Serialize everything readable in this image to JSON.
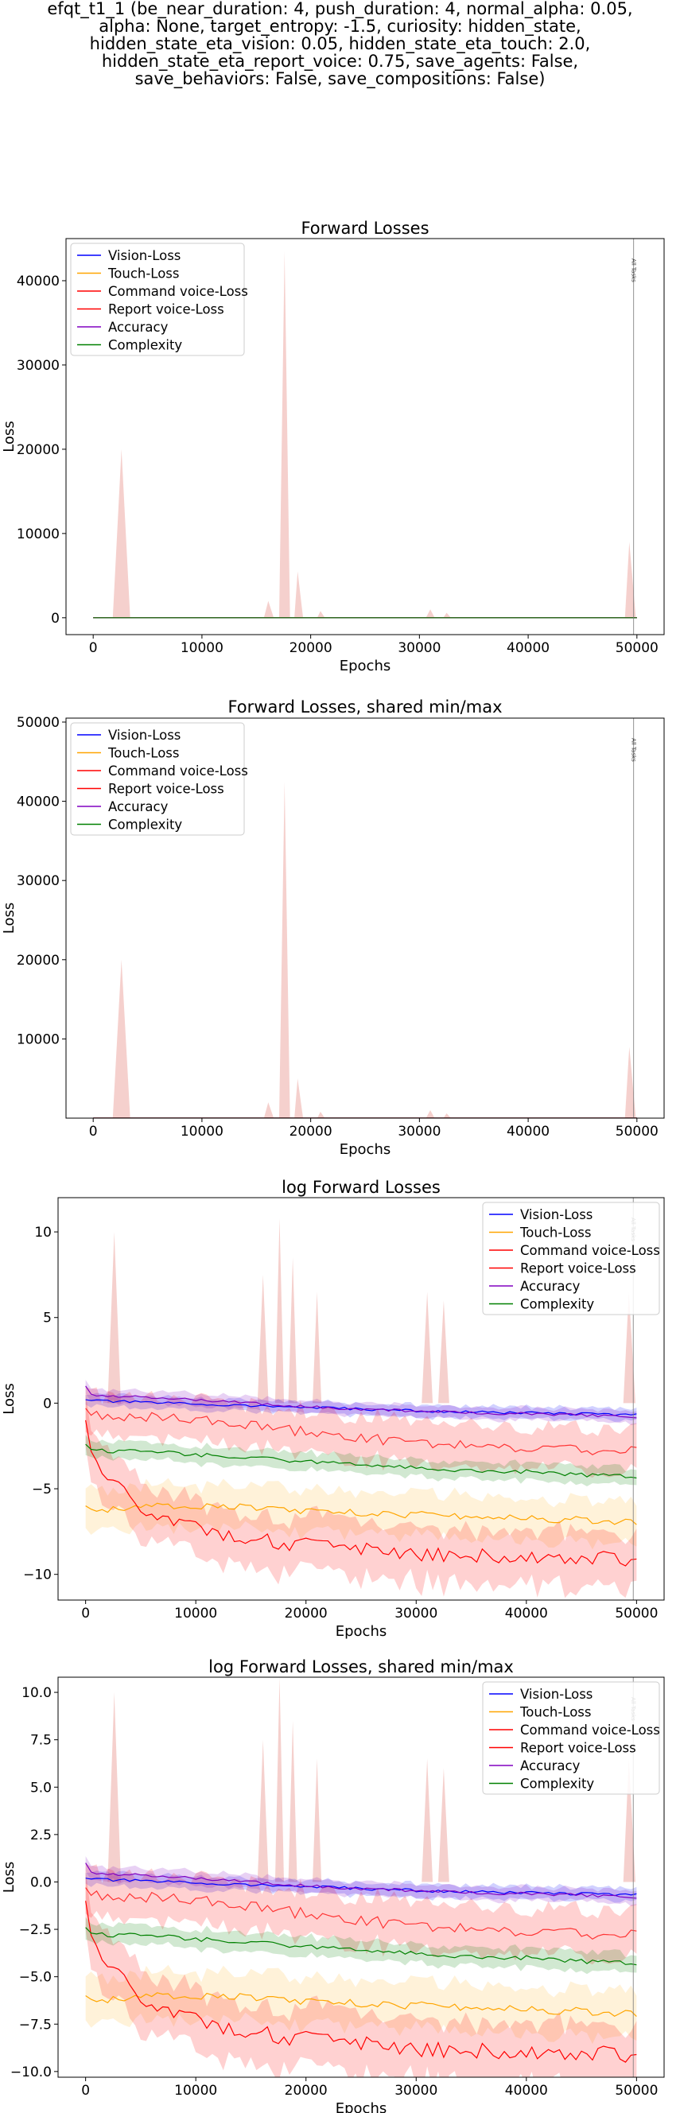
{
  "figure_title": "efqt_t1_1 (be_near_duration: 4, push_duration: 4, normal_alpha: 0.05,\nalpha: None, target_entropy: -1.5, curiosity: hidden_state,\nhidden_state_eta_vision: 0.05, hidden_state_eta_touch: 2.0,\nhidden_state_eta_report_voice: 0.75, save_agents: False,\nsave_behaviors: False, save_compositions: False)",
  "colors": {
    "Vision-Loss": "#0000ff",
    "Touch-Loss": "#ffa500",
    "Command voice-Loss": "#ff0000",
    "Report voice-Loss": "#ff0000",
    "Accuracy": "#8000c0",
    "Complexity": "#008000",
    "band": "#f2c4c0"
  },
  "chart_data": [
    {
      "type": "line",
      "title": "Forward Losses",
      "xlabel": "Epochs",
      "ylabel": "Loss",
      "xlim": [
        -2500,
        52500
      ],
      "ylim": [
        -2000,
        45000
      ],
      "xticks": [
        0,
        10000,
        20000,
        30000,
        40000,
        50000
      ],
      "xtick_labels": [
        "0",
        "10000",
        "20000",
        "30000",
        "40000",
        "50000"
      ],
      "yticks": [
        0,
        10000,
        20000,
        30000,
        40000
      ],
      "ytick_labels": [
        "0",
        "10000",
        "20000",
        "30000",
        "40000"
      ],
      "grid": false,
      "legend": "upper left",
      "vline": {
        "x": 49700,
        "label": "All Tasks"
      },
      "series_names": [
        "Vision-Loss",
        "Touch-Loss",
        "Command voice-Loss",
        "Report voice-Loss",
        "Accuracy",
        "Complexity"
      ],
      "spike_band": [
        [
          0,
          0
        ],
        [
          1800,
          0
        ],
        [
          2600,
          20000
        ],
        [
          3400,
          0
        ],
        [
          15700,
          0
        ],
        [
          16100,
          2000
        ],
        [
          16600,
          0
        ],
        [
          17100,
          0
        ],
        [
          17600,
          43500
        ],
        [
          18100,
          0
        ],
        [
          18500,
          0
        ],
        [
          18800,
          5500
        ],
        [
          19300,
          0
        ],
        [
          20600,
          0
        ],
        [
          20900,
          800
        ],
        [
          21300,
          0
        ],
        [
          30600,
          0
        ],
        [
          31000,
          1000
        ],
        [
          31400,
          0
        ],
        [
          32200,
          0
        ],
        [
          32500,
          600
        ],
        [
          32900,
          0
        ],
        [
          48900,
          0
        ],
        [
          49300,
          9000
        ],
        [
          49900,
          0
        ]
      ],
      "flat_series": {
        "Vision-Loss": 0,
        "Touch-Loss": 0,
        "Command voice-Loss": 0,
        "Report voice-Loss": 0,
        "Accuracy": 0,
        "Complexity": 0
      }
    },
    {
      "type": "line",
      "title": "Forward Losses, shared min/max",
      "xlabel": "Epochs",
      "ylabel": "Loss",
      "xlim": [
        -2500,
        52500
      ],
      "ylim": [
        0,
        50500
      ],
      "xticks": [
        0,
        10000,
        20000,
        30000,
        40000,
        50000
      ],
      "xtick_labels": [
        "0",
        "10000",
        "20000",
        "30000",
        "40000",
        "50000"
      ],
      "yticks": [
        10000,
        20000,
        30000,
        40000,
        50000
      ],
      "ytick_labels": [
        "10000",
        "20000",
        "30000",
        "40000",
        "50000"
      ],
      "grid": false,
      "legend": "upper left",
      "vline": {
        "x": 49700,
        "label": "All Tasks"
      },
      "series_names": [
        "Vision-Loss",
        "Touch-Loss",
        "Command voice-Loss",
        "Report voice-Loss",
        "Accuracy",
        "Complexity"
      ],
      "spike_band": [
        [
          0,
          0
        ],
        [
          1800,
          0
        ],
        [
          2600,
          20000
        ],
        [
          3400,
          0
        ],
        [
          15700,
          0
        ],
        [
          16100,
          2000
        ],
        [
          16600,
          0
        ],
        [
          17100,
          0
        ],
        [
          17600,
          42500
        ],
        [
          18100,
          0
        ],
        [
          18500,
          0
        ],
        [
          18800,
          5000
        ],
        [
          19300,
          0
        ],
        [
          20600,
          0
        ],
        [
          20900,
          800
        ],
        [
          21300,
          0
        ],
        [
          30600,
          0
        ],
        [
          31000,
          1000
        ],
        [
          31400,
          0
        ],
        [
          32200,
          0
        ],
        [
          32500,
          600
        ],
        [
          32900,
          0
        ],
        [
          48900,
          0
        ],
        [
          49300,
          9000
        ],
        [
          49900,
          0
        ]
      ],
      "flat_series": {
        "Vision-Loss": 0,
        "Touch-Loss": 0,
        "Command voice-Loss": 0,
        "Report voice-Loss": 0,
        "Accuracy": 0,
        "Complexity": 0
      }
    },
    {
      "type": "line",
      "title": "log Forward Losses",
      "xlabel": "Epochs",
      "ylabel": "Loss",
      "xlim": [
        -2500,
        52500
      ],
      "ylim": [
        -11.5,
        12
      ],
      "xticks": [
        0,
        10000,
        20000,
        30000,
        40000,
        50000
      ],
      "xtick_labels": [
        "0",
        "10000",
        "20000",
        "30000",
        "40000",
        "50000"
      ],
      "yticks": [
        -10,
        -5,
        0,
        5,
        10
      ],
      "ytick_labels": [
        "−10",
        "−5",
        "0",
        "5",
        "10"
      ],
      "grid": false,
      "legend": "upper right",
      "vline": {
        "x": 49700,
        "label": "All Tasks"
      },
      "series_names": [
        "Vision-Loss",
        "Touch-Loss",
        "Command voice-Loss",
        "Report voice-Loss",
        "Accuracy",
        "Complexity"
      ],
      "spike_band": [
        [
          2000,
          0
        ],
        [
          2600,
          10
        ],
        [
          3200,
          0
        ],
        [
          15600,
          0
        ],
        [
          16100,
          7.5
        ],
        [
          16600,
          0
        ],
        [
          17200,
          0
        ],
        [
          17600,
          10.8
        ],
        [
          18000,
          0
        ],
        [
          18400,
          0
        ],
        [
          18800,
          8.5
        ],
        [
          19200,
          0
        ],
        [
          20600,
          0
        ],
        [
          21000,
          6.5
        ],
        [
          21400,
          0
        ],
        [
          30500,
          0
        ],
        [
          31000,
          6.5
        ],
        [
          31500,
          0
        ],
        [
          32000,
          0
        ],
        [
          32500,
          6
        ],
        [
          33000,
          0
        ],
        [
          48800,
          0
        ],
        [
          49300,
          6.5
        ],
        [
          49900,
          0
        ]
      ],
      "x": [
        0,
        500,
        2500,
        5000,
        7500,
        10000,
        12500,
        15000,
        17500,
        20000,
        22500,
        25000,
        27500,
        30000,
        32500,
        35000,
        37500,
        40000,
        42500,
        45000,
        47500,
        50000
      ],
      "series": [
        {
          "name": "Vision-Loss",
          "values": [
            0.2,
            0.15,
            0.1,
            0.05,
            0.0,
            -0.05,
            -0.1,
            -0.15,
            -0.2,
            -0.25,
            -0.3,
            -0.35,
            -0.4,
            -0.45,
            -0.5,
            -0.52,
            -0.55,
            -0.58,
            -0.6,
            -0.62,
            -0.65,
            -0.7
          ]
        },
        {
          "name": "Touch-Loss",
          "values": [
            -6.0,
            -6.2,
            -6.2,
            -6.1,
            -6.0,
            -6.0,
            -6.0,
            -6.1,
            -6.2,
            -6.3,
            -6.4,
            -6.4,
            -6.5,
            -6.5,
            -6.6,
            -6.6,
            -6.7,
            -6.7,
            -6.8,
            -6.8,
            -6.9,
            -6.9
          ]
        },
        {
          "name": "Command voice-Loss",
          "values": [
            -0.3,
            -0.6,
            -0.8,
            -0.8,
            -0.9,
            -1.0,
            -1.1,
            -1.3,
            -1.5,
            -1.7,
            -1.9,
            -2.0,
            -2.2,
            -2.3,
            -2.4,
            -2.5,
            -2.6,
            -2.6,
            -2.7,
            -2.7,
            -2.8,
            -2.7
          ]
        },
        {
          "name": "Report voice-Loss",
          "values": [
            -1.0,
            -3.0,
            -4.8,
            -6.0,
            -6.8,
            -7.3,
            -7.6,
            -7.8,
            -8.1,
            -8.3,
            -8.5,
            -8.6,
            -8.7,
            -8.8,
            -8.8,
            -8.9,
            -8.9,
            -9.0,
            -9.0,
            -9.0,
            -9.1,
            -9.1
          ]
        },
        {
          "name": "Accuracy",
          "values": [
            1.0,
            0.5,
            0.4,
            0.35,
            0.3,
            0.2,
            0.1,
            0.0,
            -0.1,
            -0.2,
            -0.3,
            -0.35,
            -0.4,
            -0.45,
            -0.5,
            -0.55,
            -0.6,
            -0.6,
            -0.65,
            -0.7,
            -0.75,
            -0.8
          ]
        },
        {
          "name": "Complexity",
          "values": [
            -2.4,
            -2.7,
            -2.8,
            -2.8,
            -2.9,
            -3.0,
            -3.1,
            -3.2,
            -3.3,
            -3.4,
            -3.5,
            -3.6,
            -3.7,
            -3.8,
            -3.9,
            -3.9,
            -4.0,
            -4.0,
            -4.1,
            -4.2,
            -4.2,
            -4.3
          ]
        }
      ]
    },
    {
      "type": "line",
      "title": "log Forward Losses, shared min/max",
      "xlabel": "Epochs",
      "ylabel": "Loss",
      "xlim": [
        -2500,
        52500
      ],
      "ylim": [
        -10.3,
        10.8
      ],
      "xticks": [
        0,
        10000,
        20000,
        30000,
        40000,
        50000
      ],
      "xtick_labels": [
        "0",
        "10000",
        "20000",
        "30000",
        "40000",
        "50000"
      ],
      "yticks": [
        -10,
        -7.5,
        -5,
        -2.5,
        0,
        2.5,
        5,
        7.5,
        10
      ],
      "ytick_labels": [
        "−10.0",
        "−7.5",
        "−5.0",
        "−2.5",
        "0.0",
        "2.5",
        "5.0",
        "7.5",
        "10.0"
      ],
      "grid": false,
      "legend": "upper right",
      "vline": {
        "x": 49700,
        "label": "All Tasks"
      },
      "series_names": [
        "Vision-Loss",
        "Touch-Loss",
        "Command voice-Loss",
        "Report voice-Loss",
        "Accuracy",
        "Complexity"
      ],
      "spike_band": [
        [
          2000,
          0
        ],
        [
          2600,
          10
        ],
        [
          3200,
          0
        ],
        [
          15600,
          0
        ],
        [
          16100,
          7.5
        ],
        [
          16600,
          0
        ],
        [
          17200,
          0
        ],
        [
          17600,
          10.8
        ],
        [
          18000,
          0
        ],
        [
          18400,
          0
        ],
        [
          18800,
          8.5
        ],
        [
          19200,
          0
        ],
        [
          20600,
          0
        ],
        [
          21000,
          6.5
        ],
        [
          21400,
          0
        ],
        [
          30500,
          0
        ],
        [
          31000,
          6.5
        ],
        [
          31500,
          0
        ],
        [
          32000,
          0
        ],
        [
          32500,
          6
        ],
        [
          33000,
          0
        ],
        [
          48800,
          0
        ],
        [
          49300,
          6.5
        ],
        [
          49900,
          0
        ]
      ],
      "x": [
        0,
        500,
        2500,
        5000,
        7500,
        10000,
        12500,
        15000,
        17500,
        20000,
        22500,
        25000,
        27500,
        30000,
        32500,
        35000,
        37500,
        40000,
        42500,
        45000,
        47500,
        50000
      ],
      "series": [
        {
          "name": "Vision-Loss",
          "values": [
            0.2,
            0.15,
            0.1,
            0.05,
            0.0,
            -0.05,
            -0.1,
            -0.15,
            -0.2,
            -0.25,
            -0.3,
            -0.35,
            -0.4,
            -0.45,
            -0.5,
            -0.52,
            -0.55,
            -0.58,
            -0.6,
            -0.62,
            -0.65,
            -0.7
          ]
        },
        {
          "name": "Touch-Loss",
          "values": [
            -6.0,
            -6.2,
            -6.2,
            -6.1,
            -6.0,
            -6.0,
            -6.0,
            -6.1,
            -6.2,
            -6.3,
            -6.4,
            -6.4,
            -6.5,
            -6.5,
            -6.6,
            -6.6,
            -6.7,
            -6.7,
            -6.8,
            -6.8,
            -6.9,
            -6.9
          ]
        },
        {
          "name": "Command voice-Loss",
          "values": [
            -0.3,
            -0.6,
            -0.8,
            -0.8,
            -0.9,
            -1.0,
            -1.1,
            -1.3,
            -1.5,
            -1.7,
            -1.9,
            -2.0,
            -2.2,
            -2.3,
            -2.4,
            -2.5,
            -2.6,
            -2.6,
            -2.7,
            -2.7,
            -2.8,
            -2.7
          ]
        },
        {
          "name": "Report voice-Loss",
          "values": [
            -1.0,
            -3.0,
            -4.8,
            -6.0,
            -6.8,
            -7.3,
            -7.6,
            -7.8,
            -8.1,
            -8.3,
            -8.5,
            -8.6,
            -8.7,
            -8.8,
            -8.8,
            -8.9,
            -8.9,
            -9.0,
            -9.0,
            -9.0,
            -9.1,
            -9.1
          ]
        },
        {
          "name": "Accuracy",
          "values": [
            1.0,
            0.5,
            0.4,
            0.35,
            0.3,
            0.2,
            0.1,
            0.0,
            -0.1,
            -0.2,
            -0.3,
            -0.35,
            -0.4,
            -0.45,
            -0.5,
            -0.55,
            -0.6,
            -0.6,
            -0.65,
            -0.7,
            -0.75,
            -0.8
          ]
        },
        {
          "name": "Complexity",
          "values": [
            -2.4,
            -2.7,
            -2.8,
            -2.8,
            -2.9,
            -3.0,
            -3.1,
            -3.2,
            -3.3,
            -3.4,
            -3.5,
            -3.6,
            -3.7,
            -3.8,
            -3.9,
            -3.9,
            -4.0,
            -4.0,
            -4.1,
            -4.2,
            -4.2,
            -4.3
          ]
        }
      ]
    }
  ]
}
